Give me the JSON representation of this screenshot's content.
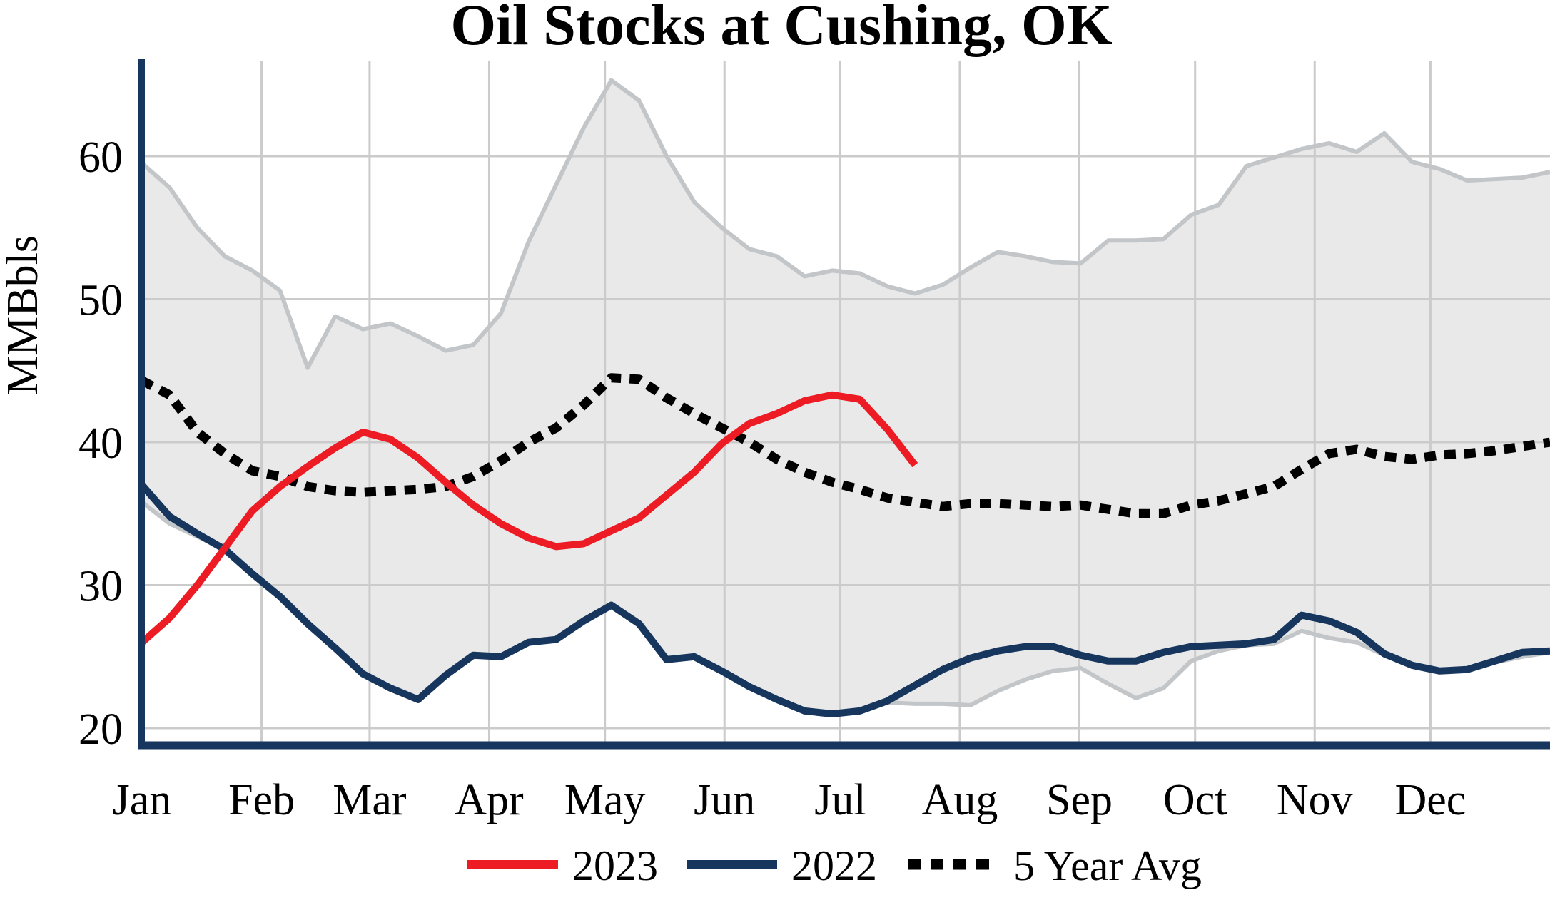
{
  "title": "Oil Stocks at Cushing, OK",
  "y_axis": {
    "label": "MMBbls",
    "ticks": [
      20,
      30,
      40,
      50,
      60
    ]
  },
  "x_axis": {
    "months": [
      "Jan",
      "Feb",
      "Mar",
      "Apr",
      "May",
      "Jun",
      "Jul",
      "Aug",
      "Sep",
      "Oct",
      "Nov",
      "Dec"
    ]
  },
  "legend": {
    "items": [
      {
        "label": "2023",
        "color": "#ed1b24",
        "dash": "solid"
      },
      {
        "label": "2022",
        "color": "#17365d",
        "dash": "solid"
      },
      {
        "label": "5 Year Avg",
        "color": "#000000",
        "dash": "dotted"
      }
    ]
  },
  "colors": {
    "background": "#ffffff",
    "axis_spine": "#17365d",
    "gridline": "#cbcbcb",
    "band_fill": "#e9e9e9",
    "band_edge": "#c3c6c9",
    "series_2023": "#ed1b24",
    "series_2022": "#17365d",
    "series_5yr_avg": "#000000",
    "text": "#000000"
  },
  "chart_data": {
    "type": "line",
    "title": "Oil Stocks at Cushing, OK",
    "xlabel": "",
    "ylabel": "MMBbls",
    "ylim": [
      18.5,
      66.5
    ],
    "yticks": [
      20,
      30,
      40,
      50,
      60
    ],
    "x_categories": [
      "Jan",
      "Feb",
      "Mar",
      "Apr",
      "May",
      "Jun",
      "Jul",
      "Aug",
      "Sep",
      "Oct",
      "Nov",
      "Dec"
    ],
    "x_resolution": "weekly, week 0 = Jan 1, week 51 = Dec 31",
    "grid": true,
    "legend_position": "bottom-center",
    "band": {
      "name": "5-year range",
      "fill": "#e9e9e9",
      "edge": "#c3c6c9",
      "upper": [
        59.5,
        57.8,
        55.0,
        53.0,
        52.0,
        50.6,
        45.2,
        48.8,
        47.9,
        48.3,
        47.4,
        46.4,
        46.8,
        49.0,
        54.0,
        58.0,
        62.0,
        65.3,
        63.9,
        60.0,
        56.8,
        55.0,
        53.5,
        53.0,
        51.6,
        52.0,
        51.8,
        50.9,
        50.4,
        51.0,
        52.2,
        53.3,
        53.0,
        52.6,
        52.5,
        54.1,
        54.1,
        54.2,
        55.9,
        56.6,
        59.3,
        59.9,
        60.5,
        60.9,
        60.3,
        61.6,
        59.6,
        59.1,
        58.3,
        58.4,
        58.5,
        58.9
      ],
      "lower": [
        35.8,
        34.3,
        33.4,
        32.5,
        30.8,
        29.2,
        27.3,
        25.6,
        23.8,
        22.8,
        22.0,
        23.7,
        25.1,
        25.0,
        26.0,
        26.2,
        27.5,
        28.6,
        27.3,
        24.8,
        25.0,
        24.0,
        22.9,
        22.0,
        21.2,
        21.0,
        21.2,
        21.8,
        21.7,
        21.7,
        21.6,
        22.6,
        23.4,
        24.0,
        24.2,
        23.1,
        22.1,
        22.8,
        24.7,
        25.4,
        25.8,
        25.9,
        26.8,
        26.3,
        26.0,
        25.1,
        24.4,
        24.0,
        24.1,
        24.6,
        25.0,
        25.3
      ]
    },
    "series": [
      {
        "name": "2023",
        "color": "#ed1b24",
        "style": "solid",
        "width": 10,
        "values": [
          26.0,
          27.7,
          30.0,
          32.6,
          35.2,
          36.9,
          38.3,
          39.6,
          40.7,
          40.2,
          38.9,
          37.2,
          35.6,
          34.3,
          33.3,
          32.7,
          32.9,
          33.8,
          34.7,
          36.3,
          37.9,
          39.9,
          41.3,
          42.0,
          42.9,
          43.3,
          43.0,
          40.9,
          38.4
        ]
      },
      {
        "name": "2022",
        "color": "#17365d",
        "style": "solid",
        "width": 10,
        "values": [
          37.0,
          34.8,
          33.6,
          32.5,
          30.8,
          29.2,
          27.3,
          25.6,
          23.8,
          22.8,
          22.0,
          23.7,
          25.1,
          25.0,
          26.0,
          26.2,
          27.5,
          28.6,
          27.3,
          24.8,
          25.0,
          24.0,
          22.9,
          22.0,
          21.2,
          21.0,
          21.2,
          21.9,
          23.0,
          24.1,
          24.9,
          25.4,
          25.7,
          25.7,
          25.1,
          24.7,
          24.7,
          25.3,
          25.7,
          25.8,
          25.9,
          26.2,
          27.9,
          27.5,
          26.7,
          25.2,
          24.4,
          24.0,
          24.1,
          24.7,
          25.3,
          25.4
        ]
      },
      {
        "name": "5 Year Avg",
        "color": "#000000",
        "style": "dotted",
        "width": 13,
        "values": [
          44.3,
          43.3,
          40.7,
          39.2,
          38.0,
          37.6,
          36.9,
          36.6,
          36.5,
          36.6,
          36.7,
          36.9,
          37.6,
          38.7,
          40.0,
          41.0,
          42.6,
          44.5,
          44.4,
          43.1,
          42.0,
          41.0,
          40.0,
          38.8,
          37.9,
          37.2,
          36.7,
          36.1,
          35.8,
          35.5,
          35.7,
          35.7,
          35.6,
          35.5,
          35.6,
          35.3,
          35.0,
          35.0,
          35.6,
          35.9,
          36.4,
          36.9,
          38.1,
          39.2,
          39.5,
          39.0,
          38.8,
          39.1,
          39.2,
          39.4,
          39.7,
          40.0
        ]
      }
    ]
  },
  "layout_hints": {
    "month_day_offsets": [
      0,
      31,
      59,
      90,
      120,
      151,
      181,
      212,
      243,
      273,
      304,
      334
    ]
  }
}
